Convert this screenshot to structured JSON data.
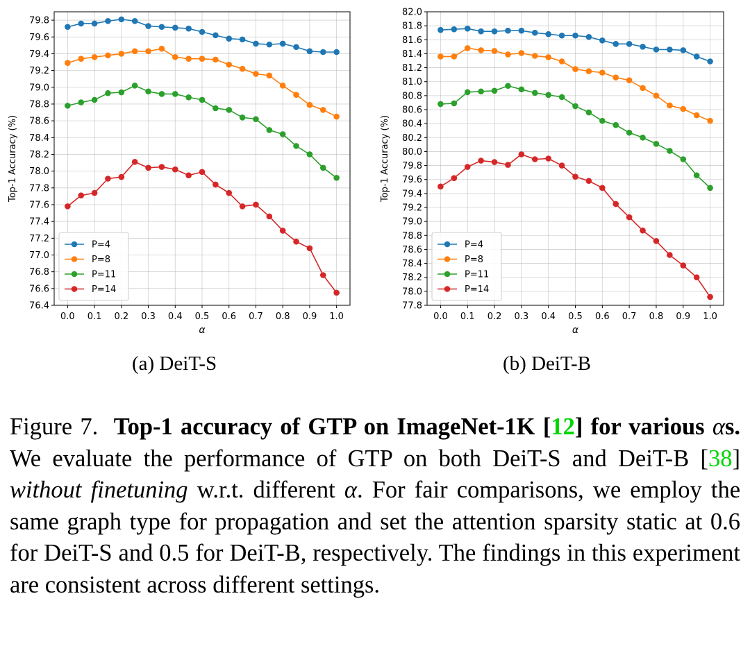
{
  "chart_data": [
    {
      "type": "line",
      "panel": "a",
      "subcaption": "(a) DeiT-S",
      "xlabel": "α",
      "ylabel": "Top-1 Accuracy (%)",
      "x": [
        0.0,
        0.05,
        0.1,
        0.15,
        0.2,
        0.25,
        0.3,
        0.35,
        0.4,
        0.45,
        0.5,
        0.55,
        0.6,
        0.65,
        0.7,
        0.75,
        0.8,
        0.85,
        0.9,
        0.95,
        1.0
      ],
      "xticks": [
        "0.0",
        "0.1",
        "0.2",
        "0.3",
        "0.4",
        "0.5",
        "0.6",
        "0.7",
        "0.8",
        "0.9",
        "1.0"
      ],
      "xticks_values": [
        0.0,
        0.1,
        0.2,
        0.3,
        0.4,
        0.5,
        0.6,
        0.7,
        0.8,
        0.9,
        1.0
      ],
      "yticks": [
        "76.4",
        "76.6",
        "76.8",
        "77.0",
        "77.2",
        "77.4",
        "77.6",
        "77.8",
        "78.0",
        "78.2",
        "78.4",
        "78.6",
        "78.8",
        "79.0",
        "79.2",
        "79.4",
        "79.6",
        "79.8"
      ],
      "xlim": [
        -0.05,
        1.05
      ],
      "ylim": [
        76.4,
        79.9
      ],
      "grid": true,
      "legend_position": "lower-left",
      "series": [
        {
          "name": "P=4",
          "color": "#1f77b4",
          "values": [
            79.72,
            79.76,
            79.76,
            79.79,
            79.81,
            79.79,
            79.73,
            79.72,
            79.71,
            79.7,
            79.66,
            79.62,
            79.58,
            79.57,
            79.52,
            79.51,
            79.52,
            79.48,
            79.43,
            79.42,
            79.42
          ]
        },
        {
          "name": "P=8",
          "color": "#ff7f0e",
          "values": [
            79.29,
            79.34,
            79.36,
            79.38,
            79.4,
            79.43,
            79.43,
            79.46,
            79.36,
            79.34,
            79.34,
            79.33,
            79.27,
            79.22,
            79.16,
            79.14,
            79.02,
            78.91,
            78.79,
            78.73,
            78.65
          ]
        },
        {
          "name": "P=11",
          "color": "#2ca02c",
          "values": [
            78.78,
            78.82,
            78.85,
            78.93,
            78.94,
            79.02,
            78.95,
            78.92,
            78.92,
            78.88,
            78.85,
            78.75,
            78.73,
            78.64,
            78.62,
            78.49,
            78.44,
            78.3,
            78.2,
            78.04,
            77.92
          ]
        },
        {
          "name": "P=14",
          "color": "#d62728",
          "values": [
            77.58,
            77.71,
            77.74,
            77.91,
            77.93,
            78.11,
            78.04,
            78.05,
            78.02,
            77.95,
            77.99,
            77.84,
            77.74,
            77.58,
            77.6,
            77.46,
            77.29,
            77.16,
            77.08,
            76.76,
            76.55
          ]
        }
      ]
    },
    {
      "type": "line",
      "panel": "b",
      "subcaption": "(b) DeiT-B",
      "xlabel": "α",
      "ylabel": "Top-1 Accuracy (%)",
      "x": [
        0.0,
        0.05,
        0.1,
        0.15,
        0.2,
        0.25,
        0.3,
        0.35,
        0.4,
        0.45,
        0.5,
        0.55,
        0.6,
        0.65,
        0.7,
        0.75,
        0.8,
        0.85,
        0.9,
        0.95,
        1.0
      ],
      "xticks": [
        "0.0",
        "0.1",
        "0.2",
        "0.3",
        "0.4",
        "0.5",
        "0.6",
        "0.7",
        "0.8",
        "0.9",
        "1.0"
      ],
      "xticks_values": [
        0.0,
        0.1,
        0.2,
        0.3,
        0.4,
        0.5,
        0.6,
        0.7,
        0.8,
        0.9,
        1.0
      ],
      "yticks": [
        "77.8",
        "78.0",
        "78.2",
        "78.4",
        "78.6",
        "78.8",
        "79.0",
        "79.2",
        "79.4",
        "79.6",
        "79.8",
        "80.0",
        "80.2",
        "80.4",
        "80.6",
        "80.8",
        "81.0",
        "81.2",
        "81.4",
        "81.6",
        "81.8",
        "82.0"
      ],
      "xlim": [
        -0.05,
        1.05
      ],
      "ylim": [
        77.8,
        82.0
      ],
      "grid": true,
      "legend_position": "lower-left",
      "series": [
        {
          "name": "P=4",
          "color": "#1f77b4",
          "values": [
            81.74,
            81.75,
            81.76,
            81.72,
            81.72,
            81.73,
            81.73,
            81.7,
            81.68,
            81.66,
            81.66,
            81.64,
            81.59,
            81.54,
            81.54,
            81.5,
            81.46,
            81.46,
            81.45,
            81.36,
            81.29
          ]
        },
        {
          "name": "P=8",
          "color": "#ff7f0e",
          "values": [
            81.36,
            81.36,
            81.48,
            81.45,
            81.44,
            81.39,
            81.41,
            81.37,
            81.35,
            81.29,
            81.18,
            81.15,
            81.13,
            81.06,
            81.02,
            80.91,
            80.8,
            80.66,
            80.61,
            80.52,
            80.44
          ]
        },
        {
          "name": "P=11",
          "color": "#2ca02c",
          "values": [
            80.68,
            80.69,
            80.85,
            80.86,
            80.87,
            80.94,
            80.89,
            80.84,
            80.81,
            80.78,
            80.65,
            80.56,
            80.44,
            80.38,
            80.27,
            80.2,
            80.11,
            80.01,
            79.89,
            79.66,
            79.48
          ]
        },
        {
          "name": "P=14",
          "color": "#d62728",
          "values": [
            79.5,
            79.62,
            79.78,
            79.87,
            79.85,
            79.81,
            79.96,
            79.89,
            79.9,
            79.8,
            79.64,
            79.58,
            79.48,
            79.25,
            79.06,
            78.87,
            78.72,
            78.52,
            78.37,
            78.2,
            77.92
          ]
        }
      ]
    }
  ],
  "caption": {
    "label": "Figure 7.",
    "bold_a": "Top-1 accuracy of GTP on ImageNet-1K [",
    "cite_1": "12",
    "bold_b": "] for various ",
    "alpha": "α",
    "bold_c": "s.",
    "text_1": " We evaluate the performance of GTP on both DeiT-S and DeiT-B [",
    "cite_2": "38",
    "text_2": "] ",
    "italic": "without finetuning",
    "text_3": " w.r.t. different ",
    "alpha_2": "α",
    "text_4": ". For fair comparisons, we employ the same graph type for propagation and set the attention sparsity static at 0.6 for DeiT-S and 0.5 for DeiT-B, respectively. The findings in this experiment are consistent across different settings."
  }
}
